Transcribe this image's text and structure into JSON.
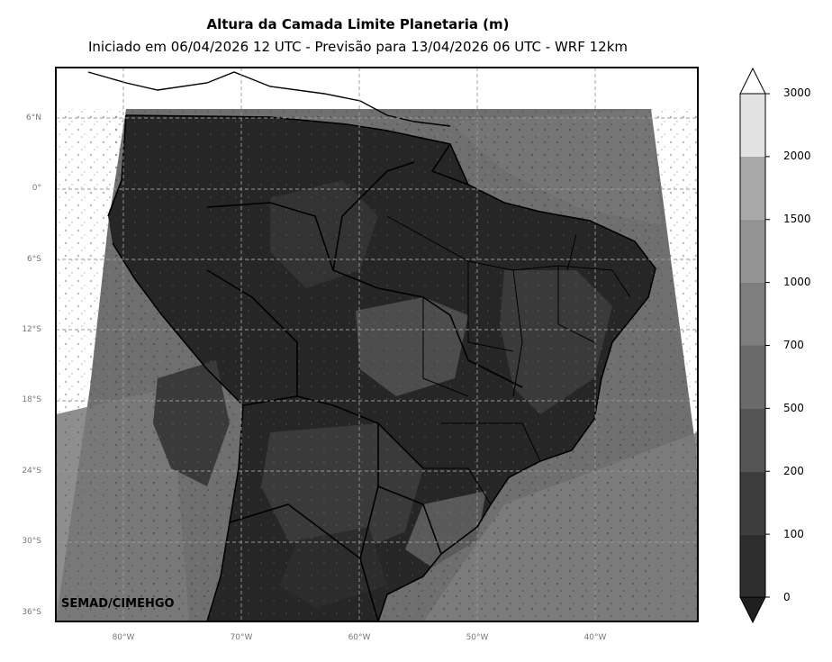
{
  "title": "Altura da Camada Limite Planetaria (m)",
  "subtitle": "Iniciado em 06/04/2026 12 UTC - Previsão para 13/04/2026 06 UTC - WRF 12km",
  "credit": "SEMAD/CIMEHGO",
  "lat_labels": [
    "6°N",
    "0°",
    "6°S",
    "12°S",
    "18°S",
    "24°S",
    "30°S",
    "36°S"
  ],
  "lon_labels": [
    "80°W",
    "70°W",
    "60°W",
    "50°W",
    "40°W"
  ],
  "colorbar": {
    "levels": [
      "0",
      "100",
      "200",
      "500",
      "700",
      "1000",
      "1500",
      "2000",
      "3000"
    ],
    "colors": [
      "#1f1f1f",
      "#2e2e2e",
      "#3c3c3c",
      "#555555",
      "#6a6a6a",
      "#7e7e7e",
      "#939393",
      "#a8a8a8",
      "#e2e2e2"
    ]
  },
  "map_colors": {
    "ocean": "#6f6f6f",
    "land_dark": "#262626",
    "land_mid": "#4a4a4a",
    "land_light": "#707070",
    "outside": "#ffffff"
  }
}
